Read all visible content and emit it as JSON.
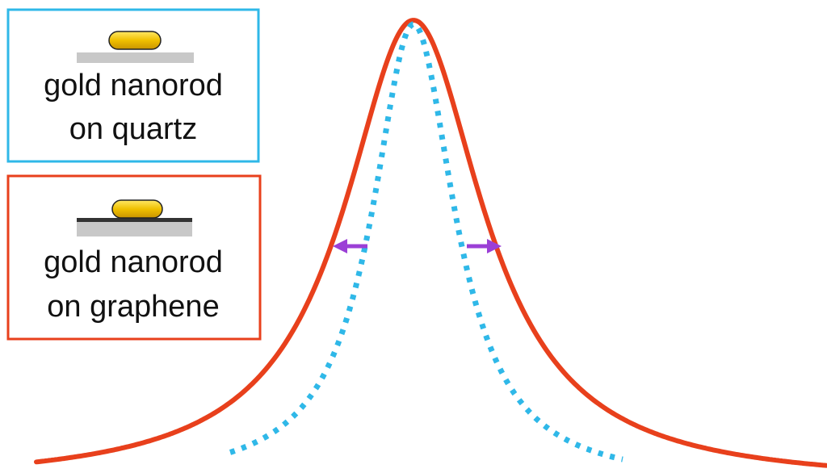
{
  "legend": {
    "items": [
      {
        "lines": [
          "gold nanorod",
          "on quartz"
        ]
      },
      {
        "lines": [
          "gold nanorod",
          "on graphene"
        ]
      }
    ]
  }
}
